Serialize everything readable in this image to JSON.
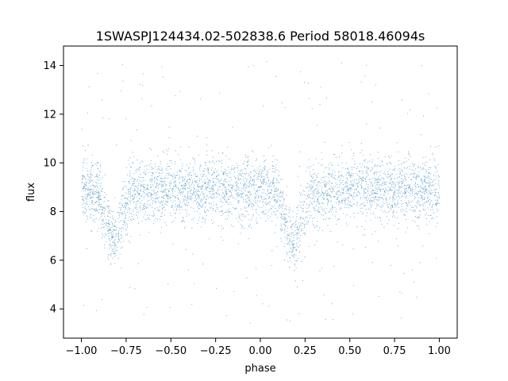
{
  "chart_data": {
    "type": "scatter",
    "title": "1SWASPJ124434.02-502838.6 Period 58018.46094s",
    "xlabel": "phase",
    "ylabel": "flux",
    "xlim": [
      -1.1,
      1.1
    ],
    "ylim": [
      2.8,
      14.8
    ],
    "x_ticks": [
      -1.0,
      -0.75,
      -0.5,
      -0.25,
      0.0,
      0.25,
      0.5,
      0.75,
      1.0
    ],
    "x_tick_labels": [
      "−1.00",
      "−0.75",
      "−0.50",
      "−0.25",
      "0.00",
      "0.25",
      "0.50",
      "0.75",
      "1.00"
    ],
    "y_ticks": [
      4,
      6,
      8,
      10,
      12,
      14
    ],
    "y_tick_labels": [
      "4",
      "6",
      "8",
      "10",
      "12",
      "14"
    ],
    "grid": false,
    "point_color": "#1f77b4",
    "series": [
      {
        "x_range": [
          -1.0,
          1.0
        ],
        "baseline_flux": 8.9,
        "dips": [
          {
            "phase": -0.82,
            "min_flux": 7.0
          },
          {
            "phase": 0.18,
            "min_flux": 6.8
          }
        ],
        "core_band": [
          7.5,
          10.2
        ],
        "outlier_range": [
          3.4,
          14.3
        ]
      }
    ]
  }
}
